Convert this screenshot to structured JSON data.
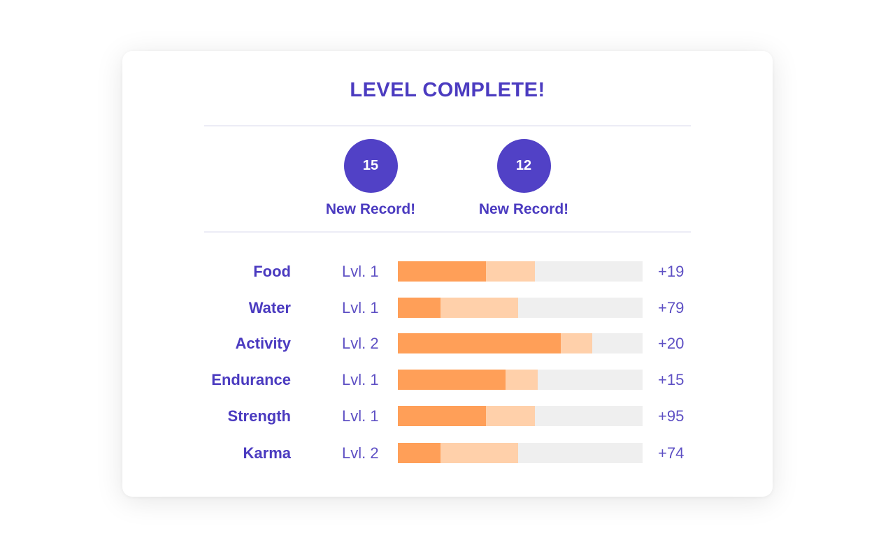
{
  "title": "LEVEL COMPLETE!",
  "records": [
    {
      "value": "15",
      "label": "New Record!"
    },
    {
      "value": "12",
      "label": "New Record!"
    }
  ],
  "stats": [
    {
      "name": "Food",
      "level": "Lvl. 1",
      "gain": "+19",
      "fill": 0.36,
      "pending": 0.56
    },
    {
      "name": "Water",
      "level": "Lvl. 1",
      "gain": "+79",
      "fill": 0.175,
      "pending": 0.49
    },
    {
      "name": "Activity",
      "level": "Lvl. 2",
      "gain": "+20",
      "fill": 0.665,
      "pending": 0.795
    },
    {
      "name": "Endurance",
      "level": "Lvl. 1",
      "gain": "+15",
      "fill": 0.44,
      "pending": 0.57
    },
    {
      "name": "Strength",
      "level": "Lvl. 1",
      "gain": "+95",
      "fill": 0.36,
      "pending": 0.56
    },
    {
      "name": "Karma",
      "level": "Lvl. 2",
      "gain": "+74",
      "fill": 0.175,
      "pending": 0.49
    }
  ],
  "colors": {
    "accent": "#4b3bc0",
    "circle": "#5141c6",
    "bar_fill": "#ff9f58",
    "bar_pending": "#ffd0aa",
    "bar_track": "#efefef"
  }
}
